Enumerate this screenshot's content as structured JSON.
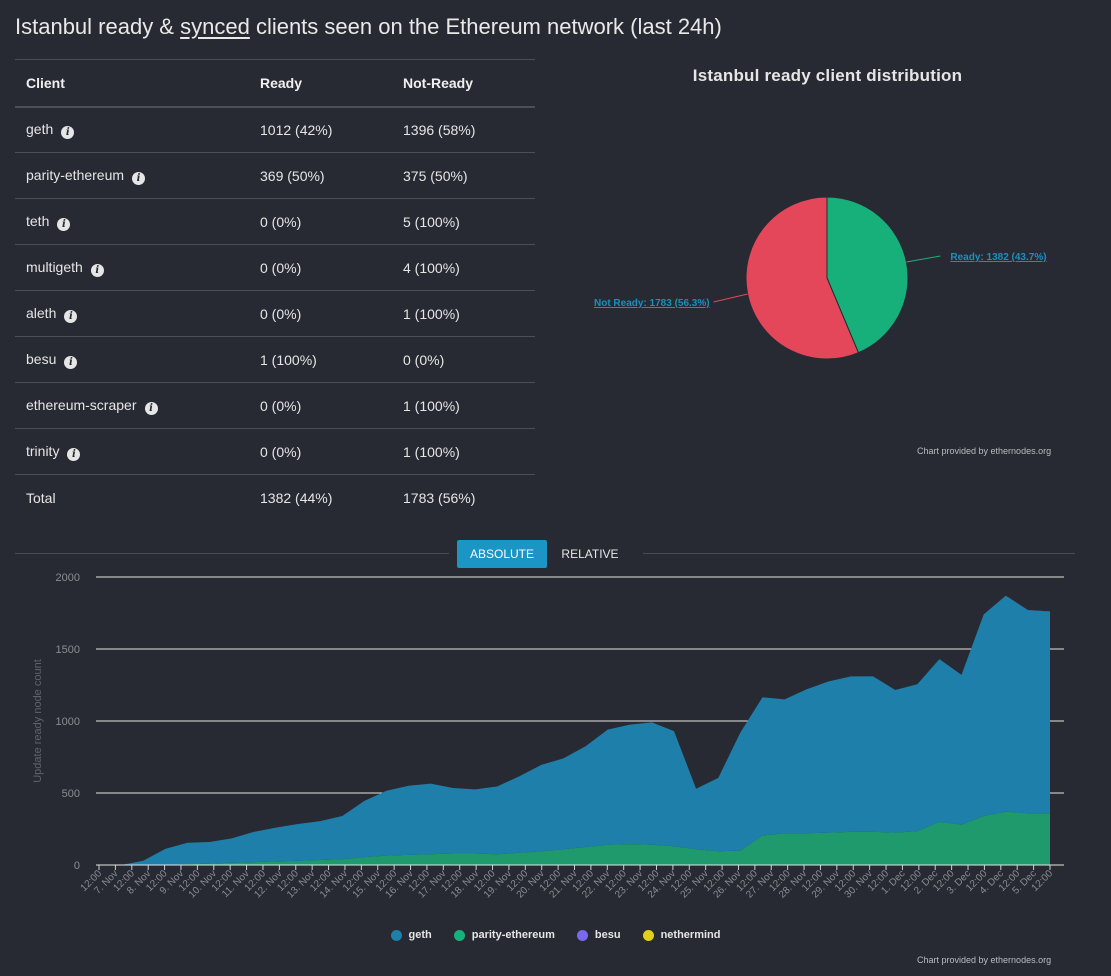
{
  "title": {
    "prefix": "Istanbul ready & ",
    "link": "synced",
    "suffix": " clients seen on the Ethereum network (last 24h)"
  },
  "table": {
    "headers": [
      "Client",
      "Ready",
      "Not-Ready"
    ],
    "rows": [
      {
        "client": "geth",
        "ready": "1012 (42%)",
        "not_ready": "1396 (58%)"
      },
      {
        "client": "parity-ethereum",
        "ready": "369 (50%)",
        "not_ready": "375 (50%)"
      },
      {
        "client": "teth",
        "ready": "0 (0%)",
        "not_ready": "5 (100%)"
      },
      {
        "client": "multigeth",
        "ready": "0 (0%)",
        "not_ready": "4 (100%)"
      },
      {
        "client": "aleth",
        "ready": "0 (0%)",
        "not_ready": "1 (100%)"
      },
      {
        "client": "besu",
        "ready": "1 (100%)",
        "not_ready": "0 (0%)"
      },
      {
        "client": "ethereum-scraper",
        "ready": "0 (0%)",
        "not_ready": "1 (100%)"
      },
      {
        "client": "trinity",
        "ready": "0 (0%)",
        "not_ready": "1 (100%)"
      }
    ],
    "total": {
      "label": "Total",
      "ready": "1382 (44%)",
      "not_ready": "1783 (56%)"
    }
  },
  "colors": {
    "geth": "#1f7fab",
    "parity": "#1f9a6c",
    "besu": "#7b68ee",
    "nethermind": "#e2cf1a",
    "ready": "#17b07a",
    "not_ready": "#e5475a",
    "accent": "#1b95c4"
  },
  "toggle": {
    "absolute": "ABSOLUTE",
    "relative": "RELATIVE"
  },
  "credit": "Chart provided by ethernodes.org",
  "chart_data": [
    {
      "type": "pie",
      "title": "Istanbul ready client distribution",
      "slices": [
        {
          "label": "Ready",
          "value": 1382,
          "percent": 43.7,
          "text": "Ready: 1382 (43.7%)"
        },
        {
          "label": "Not Ready",
          "value": 1783,
          "percent": 56.3,
          "text": "Not Ready: 1783 (56.3%)"
        }
      ]
    },
    {
      "type": "area",
      "stacked": true,
      "ylabel": "Update ready node count",
      "ylim": [
        0,
        2000
      ],
      "yticks": [
        0,
        500,
        1000,
        1500,
        2000
      ],
      "grid": true,
      "legend_position": "bottom",
      "x_ticks": [
        "12:00",
        "7. Nov",
        "12:00",
        "8. Nov",
        "12:00",
        "9. Nov",
        "12:00",
        "10. Nov",
        "12:00",
        "11. Nov",
        "12:00",
        "12. Nov",
        "12:00",
        "13. Nov",
        "12:00",
        "14. Nov",
        "12:00",
        "15. Nov",
        "12:00",
        "16. Nov",
        "12:00",
        "17. Nov",
        "12:00",
        "18. Nov",
        "12:00",
        "19. Nov",
        "12:00",
        "20. Nov",
        "12:00",
        "21. Nov",
        "12:00",
        "22. Nov",
        "12:00",
        "23. Nov",
        "12:00",
        "24. Nov",
        "12:00",
        "25. Nov",
        "12:00",
        "26. Nov",
        "12:00",
        "27. Nov",
        "12:00",
        "28. Nov",
        "12:00",
        "29. Nov",
        "12:00",
        "30. Nov",
        "12:00",
        "1. Dec",
        "12:00",
        "2. Dec",
        "12:00",
        "3. Dec",
        "12:00",
        "4. Dec",
        "12:00",
        "5. Dec",
        "12:00"
      ],
      "x_start": "6 Nov 12:00",
      "x_end": "5 Dec 18:00",
      "x_step_days": 0.5,
      "series": [
        {
          "name": "geth",
          "values": [
            0,
            0,
            30,
            110,
            150,
            150,
            170,
            210,
            235,
            255,
            270,
            300,
            390,
            450,
            480,
            490,
            455,
            445,
            470,
            530,
            600,
            630,
            700,
            800,
            830,
            850,
            800,
            420,
            510,
            820,
            960,
            930,
            1000,
            1050,
            1080,
            1080,
            990,
            1020,
            1130,
            1040,
            1400,
            1500,
            1410,
            1400
          ]
        },
        {
          "name": "parity-ethereum",
          "values": [
            0,
            0,
            0,
            2,
            5,
            10,
            15,
            20,
            25,
            30,
            35,
            40,
            55,
            65,
            70,
            75,
            80,
            80,
            75,
            85,
            95,
            110,
            125,
            140,
            145,
            140,
            130,
            110,
            95,
            100,
            205,
            220,
            220,
            225,
            230,
            230,
            225,
            235,
            300,
            280,
            340,
            370,
            360,
            360
          ]
        },
        {
          "name": "besu",
          "values": [
            0,
            0,
            0,
            0,
            0,
            0,
            0,
            0,
            0,
            0,
            0,
            0,
            0,
            0,
            0,
            0,
            0,
            0,
            0,
            0,
            0,
            0,
            0,
            0,
            0,
            0,
            0,
            0,
            0,
            0,
            0,
            0,
            0,
            0,
            0,
            0,
            0,
            0,
            0,
            0,
            0,
            1,
            1,
            1
          ]
        },
        {
          "name": "nethermind",
          "values": [
            0,
            0,
            0,
            0,
            0,
            0,
            0,
            0,
            0,
            0,
            0,
            0,
            0,
            0,
            0,
            0,
            0,
            0,
            0,
            0,
            0,
            0,
            0,
            0,
            0,
            0,
            0,
            0,
            0,
            0,
            0,
            0,
            0,
            0,
            0,
            0,
            0,
            0,
            0,
            0,
            0,
            0,
            0,
            0
          ]
        }
      ]
    }
  ]
}
